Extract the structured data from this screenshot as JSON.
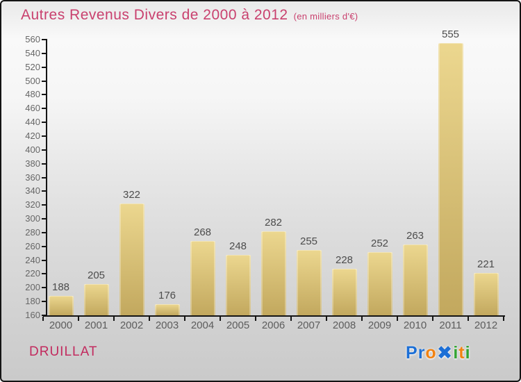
{
  "chart_data": {
    "type": "bar",
    "title": "Autres Revenus Divers de 2000 à 2012",
    "subtitle": "(en milliers d'€)",
    "categories": [
      "2000",
      "2001",
      "2002",
      "2003",
      "2004",
      "2005",
      "2006",
      "2007",
      "2008",
      "2009",
      "2010",
      "2011",
      "2012"
    ],
    "values": [
      188,
      205,
      322,
      176,
      268,
      248,
      282,
      255,
      228,
      252,
      263,
      555,
      221
    ],
    "xlabel": "",
    "ylabel": "",
    "ylim": [
      160,
      560
    ],
    "yticks": [
      160,
      180,
      200,
      220,
      240,
      260,
      280,
      300,
      320,
      340,
      360,
      380,
      400,
      420,
      440,
      460,
      480,
      500,
      520,
      540,
      560
    ],
    "grid": false,
    "legend": "none",
    "value_labels": true,
    "colors": {
      "bar_top": "#ecd78f",
      "bar_bottom": "#c2a85e",
      "axis": "#141414",
      "tick_label": "#666666",
      "value_label": "#4c4c4c",
      "category_label": "#5c5c5c",
      "title": "#c9406e"
    }
  },
  "footer": {
    "place": "DRUILLAT",
    "place_color": "#c22a5e",
    "logo_word": "Proxiti",
    "logo_letters": [
      {
        "glyph": "P",
        "color": "#1c6fd6",
        "big": false
      },
      {
        "glyph": "r",
        "color": "#1c6fd6",
        "big": false
      },
      {
        "glyph": "o",
        "color": "#f28211",
        "big": false
      },
      {
        "glyph": "✖",
        "color": "#1c6fd6",
        "big": true
      },
      {
        "glyph": "i",
        "color": "#33a431",
        "big": false
      },
      {
        "glyph": "t",
        "color": "#f28211",
        "big": false
      },
      {
        "glyph": "i",
        "color": "#33a431",
        "big": false
      }
    ]
  }
}
